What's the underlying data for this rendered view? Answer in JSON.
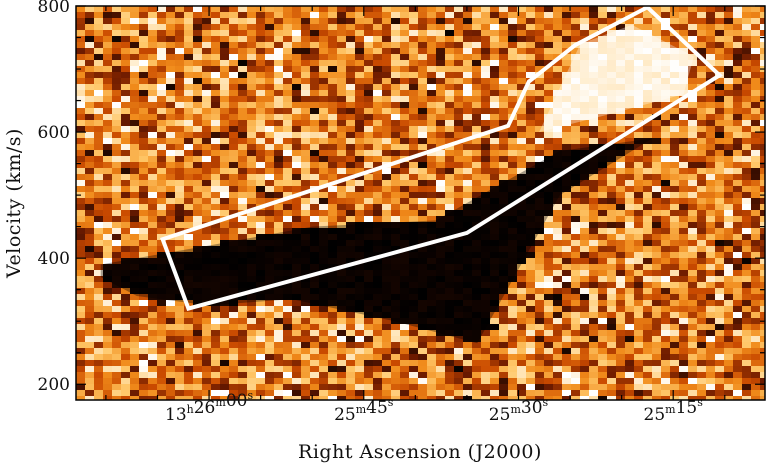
{
  "chart_data": {
    "type": "heatmap",
    "title": "",
    "xlabel": "Right Ascension (J2000)",
    "ylabel": "Velocity (km/s)",
    "ylim": [
      175,
      800
    ],
    "y_ticks": [
      200,
      400,
      600,
      800
    ],
    "y_tick_labels": [
      "200",
      "400",
      "600",
      "800"
    ],
    "xlim_sec": [
      6.5,
      18.5
    ],
    "x_ticks": [
      {
        "sec": 60,
        "parts": [
          {
            "t": "13",
            "sup": "h"
          },
          {
            "t": "26",
            "sup": "m"
          },
          {
            "t": "00",
            "sup": "s"
          }
        ]
      },
      {
        "sec": 45,
        "parts": [
          {
            "t": "25",
            "sup": "m"
          },
          {
            "t": "45",
            "sup": "s"
          }
        ]
      },
      {
        "sec": 30,
        "parts": [
          {
            "t": "25",
            "sup": "m"
          },
          {
            "t": "30",
            "sup": "s"
          }
        ]
      },
      {
        "sec": 15,
        "parts": [
          {
            "t": "25",
            "sup": "m"
          },
          {
            "t": "15",
            "sup": "s"
          }
        ]
      }
    ],
    "colormap": [
      "#000000",
      "#6b1a00",
      "#c94a00",
      "#f08a1a",
      "#ffc86a",
      "#ffffff"
    ],
    "background_level": 0.55,
    "absorption_feature": {
      "level": 0.0,
      "description_points": [
        [
          70.5,
          370
        ],
        [
          67,
          340
        ],
        [
          60,
          325
        ],
        [
          52,
          335
        ],
        [
          42,
          300
        ],
        [
          34,
          265
        ],
        [
          26,
          500
        ],
        [
          17,
          590
        ],
        [
          26,
          570
        ],
        [
          38,
          460
        ],
        [
          50,
          450
        ],
        [
          60,
          420
        ],
        [
          70.5,
          390
        ]
      ]
    },
    "emission_feature": {
      "level": 1.0,
      "points": [
        [
          28,
          600
        ],
        [
          24,
          740
        ],
        [
          19,
          770
        ],
        [
          13,
          720
        ],
        [
          14,
          660
        ],
        [
          22,
          625
        ]
      ]
    },
    "region_outline": {
      "color": "#ffffff",
      "points": [
        [
          62,
          320
        ],
        [
          64.5,
          430
        ],
        [
          31,
          610
        ],
        [
          29,
          680
        ],
        [
          24.5,
          738
        ],
        [
          17.5,
          798
        ],
        [
          10.5,
          690
        ],
        [
          35,
          440
        ]
      ]
    }
  }
}
